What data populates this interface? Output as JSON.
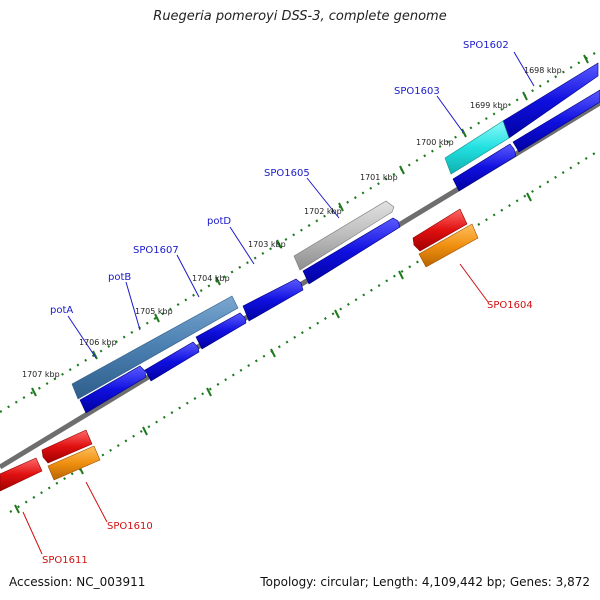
{
  "title": "Ruegeria pomeroyi DSS-3, complete genome",
  "footer": {
    "accession": "Accession: NC_003911",
    "summary": "Topology: circular; Length: 4,109,442 bp; Genes: 3,872"
  },
  "colors": {
    "background": "#ffffff",
    "backbone": "#6e6e6e",
    "tick": "#1f7a1f",
    "forward_label": "#1a1acc",
    "reverse_label": "#d01010",
    "blue_gene": "#1010e0",
    "steelblue_feature": "#4a7fb0",
    "cyan_feature": "#22e0e0",
    "gray_feature": "#b8b8b8",
    "red_feature": "#e01010",
    "orange_feature": "#f09010"
  },
  "scale_labels": [
    "1698 kbp",
    "1699 kbp",
    "1700 kbp",
    "1701 kbp",
    "1702 kbp",
    "1703 kbp",
    "1704 kbp",
    "1705 kbp",
    "1706 kbp",
    "1707 kbp"
  ],
  "forward_labels": [
    "SPO1602",
    "SPO1603",
    "SPO1605",
    "potD",
    "SPO1607",
    "potB",
    "potA"
  ],
  "reverse_labels": [
    "SPO1604",
    "SPO1610",
    "SPO1611"
  ]
}
